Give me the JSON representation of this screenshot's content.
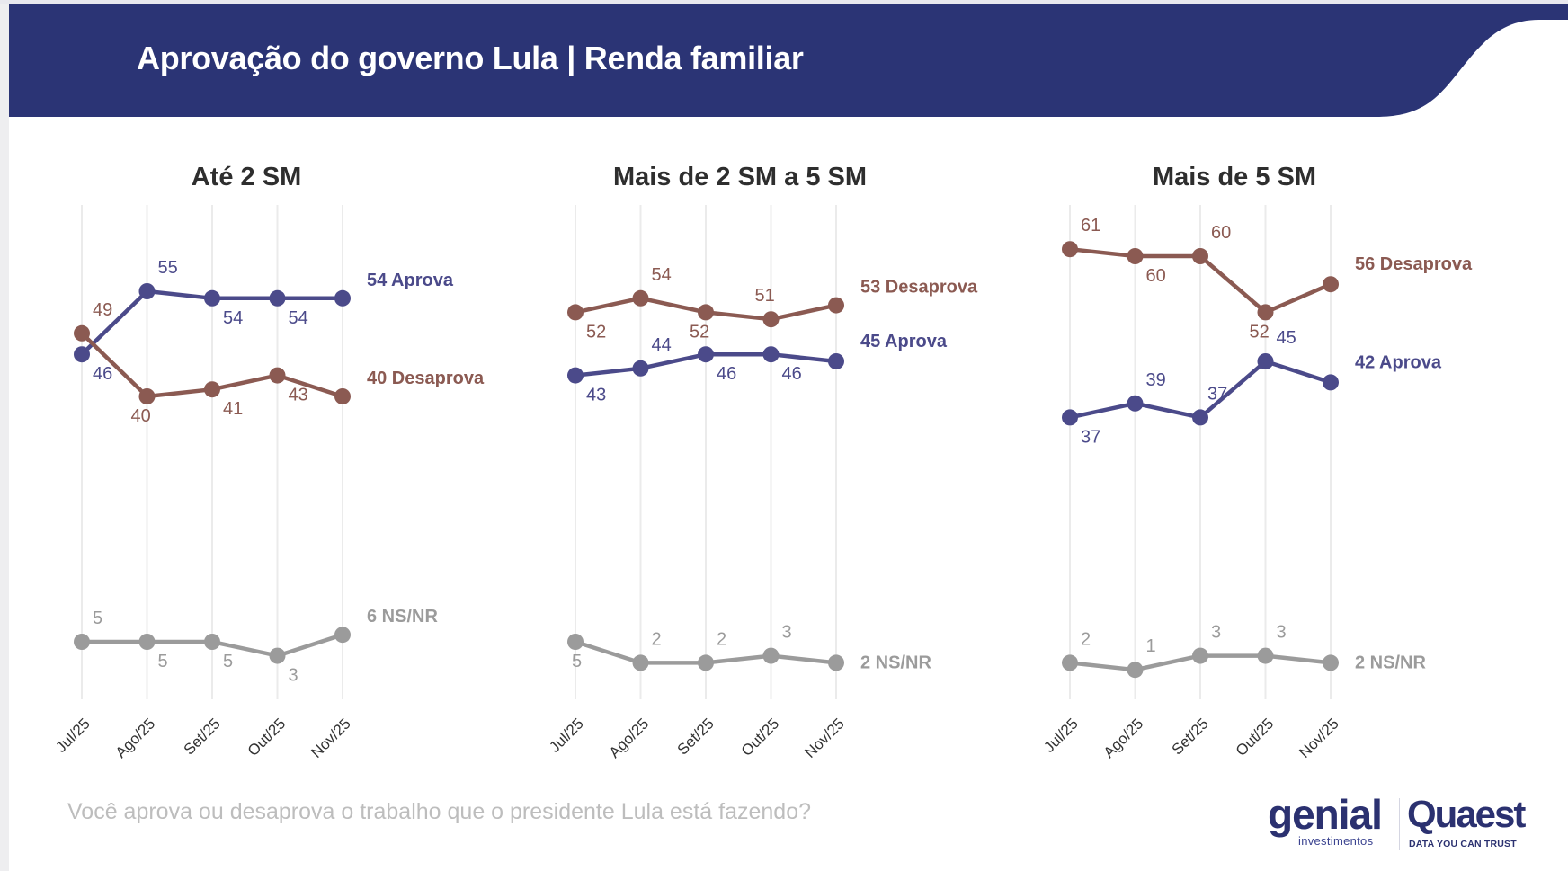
{
  "header": {
    "title": "Aprovação do governo Lula | Renda familiar",
    "bar_color": "#2b3475"
  },
  "footer": {
    "question": "Você aprova ou desaprova o trabalho que o presidente Lula está fazendo?"
  },
  "logos": {
    "genial_word": "genial",
    "genial_sub": "investimentos",
    "quaest_word": "Quaest",
    "quaest_sub": "DATA YOU CAN TRUST"
  },
  "colors": {
    "aprova": "#4b4a8a",
    "desaprova": "#8b5a52",
    "nsnr": "#9b9b9b",
    "grid": "#ebebeb",
    "panel_title": "#2e2e2e",
    "tick": "#333333"
  },
  "chart_data": [
    {
      "type": "line",
      "title": "Até 2 SM",
      "categories": [
        "Jul/25",
        "Ago/25",
        "Set/25",
        "Out/25",
        "Nov/25"
      ],
      "ylim": [
        0,
        65
      ],
      "grid": "vertical",
      "series": [
        {
          "key": "aprova",
          "name": "Aprova",
          "values": [
            46,
            55,
            54,
            54,
            54
          ],
          "end_label": "54 Aprova"
        },
        {
          "key": "desaprova",
          "name": "Desaprova",
          "values": [
            49,
            40,
            41,
            43,
            40
          ],
          "end_label": "40 Desaprova"
        },
        {
          "key": "nsnr",
          "name": "NS/NR",
          "values": [
            5,
            5,
            5,
            3,
            6
          ],
          "end_label": "6 NS/NR"
        }
      ]
    },
    {
      "type": "line",
      "title": "Mais de 2 SM a 5 SM",
      "categories": [
        "Jul/25",
        "Ago/25",
        "Set/25",
        "Out/25",
        "Nov/25"
      ],
      "ylim": [
        0,
        65
      ],
      "grid": "vertical",
      "series": [
        {
          "key": "aprova",
          "name": "Aprova",
          "values": [
            43,
            44,
            46,
            46,
            45
          ],
          "end_label": "45 Aprova"
        },
        {
          "key": "desaprova",
          "name": "Desaprova",
          "values": [
            52,
            54,
            52,
            51,
            53
          ],
          "end_label": "53 Desaprova"
        },
        {
          "key": "nsnr",
          "name": "NS/NR",
          "values": [
            5,
            2,
            2,
            3,
            2
          ],
          "end_label": "2 NS/NR"
        }
      ]
    },
    {
      "type": "line",
      "title": "Mais de 5 SM",
      "categories": [
        "Jul/25",
        "Ago/25",
        "Set/25",
        "Out/25",
        "Nov/25"
      ],
      "ylim": [
        0,
        65
      ],
      "grid": "vertical",
      "series": [
        {
          "key": "aprova",
          "name": "Aprova",
          "values": [
            37,
            39,
            37,
            45,
            42
          ],
          "end_label": "42 Aprova"
        },
        {
          "key": "desaprova",
          "name": "Desaprova",
          "values": [
            61,
            60,
            60,
            52,
            56
          ],
          "end_label": "56 Desaprova"
        },
        {
          "key": "nsnr",
          "name": "NS/NR",
          "values": [
            2,
            1,
            3,
            3,
            2
          ],
          "end_label": "2 NS/NR"
        }
      ]
    }
  ]
}
